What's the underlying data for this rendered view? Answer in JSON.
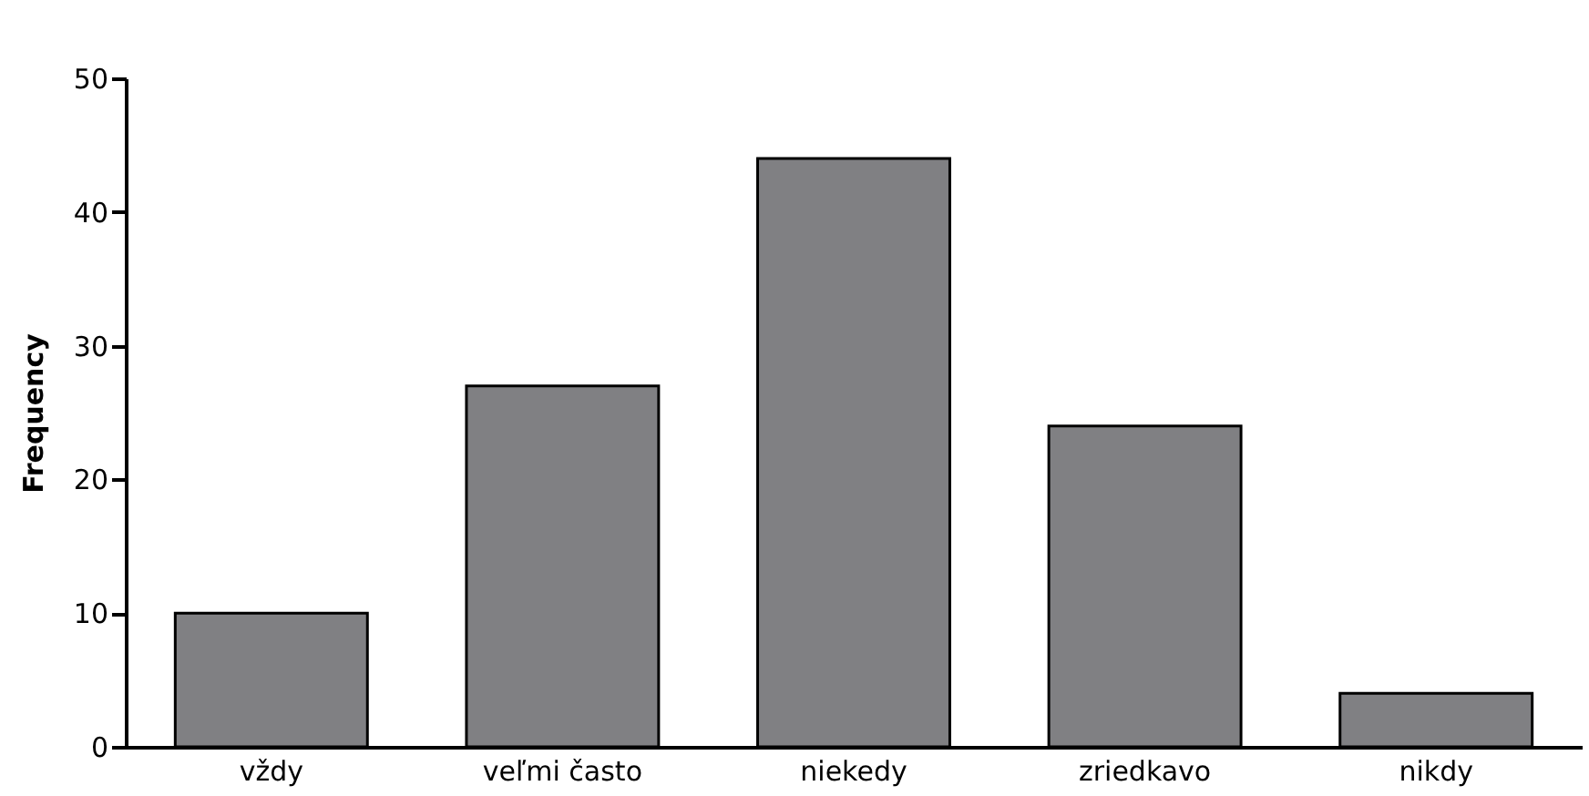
{
  "chart_data": {
    "type": "bar",
    "ylabel": "Frequency",
    "categories": [
      "vždy",
      "veľmi často",
      "niekedy",
      "zriedkavo",
      "nikdy"
    ],
    "values": [
      10,
      27,
      44,
      24,
      4
    ],
    "color": "#808083",
    "ylim": [
      0,
      50
    ],
    "yticks": [
      0,
      10,
      20,
      30,
      40,
      50
    ],
    "grid": false
  }
}
